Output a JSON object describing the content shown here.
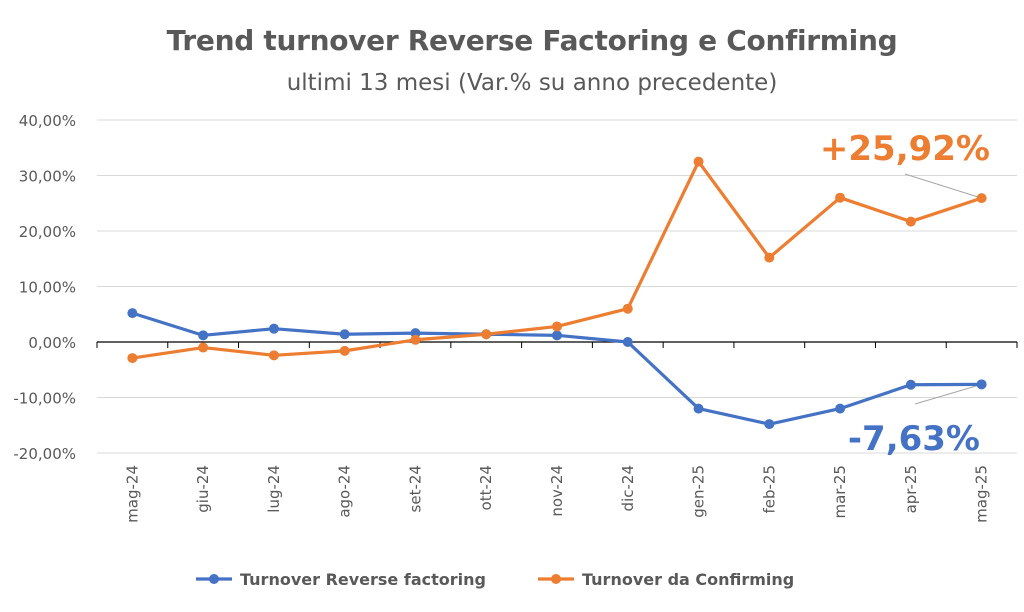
{
  "chart_data": {
    "type": "line",
    "title": "Trend turnover Reverse Factoring e Confirming",
    "subtitle": "ultimi 13 mesi (Var.% su anno precedente)",
    "categories": [
      "mag-24",
      "giu-24",
      "lug-24",
      "ago-24",
      "set-24",
      "ott-24",
      "nov-24",
      "dic-24",
      "gen-25",
      "feb-25",
      "mar-25",
      "apr-25",
      "mag-25"
    ],
    "ylim": [
      -20,
      40
    ],
    "yticks": [
      -20,
      -10,
      0,
      10,
      20,
      30,
      40
    ],
    "ytick_labels": [
      "-20,00%",
      "-10,00%",
      "0,00%",
      "10,00%",
      "20,00%",
      "30,00%",
      "40,00%"
    ],
    "grid": true,
    "legend_position": "bottom",
    "series": [
      {
        "name": "Turnover Reverse factoring",
        "color": "#4472C4",
        "values": [
          5.2,
          1.2,
          2.4,
          1.4,
          1.6,
          1.4,
          1.2,
          0.0,
          -12.0,
          -14.8,
          -12.0,
          -7.7,
          -7.63
        ]
      },
      {
        "name": "Turnover da Confirming",
        "color": "#ED7D31",
        "values": [
          -2.9,
          -1.0,
          -2.4,
          -1.6,
          0.4,
          1.4,
          2.8,
          6.0,
          32.5,
          15.2,
          26.0,
          21.7,
          25.92
        ]
      }
    ],
    "annotations": [
      {
        "text": "+25,92%",
        "color": "#ED7D31",
        "series": 1,
        "index": 12
      },
      {
        "text": "-7,63%",
        "color": "#4472C4",
        "series": 0,
        "index": 12
      }
    ]
  }
}
